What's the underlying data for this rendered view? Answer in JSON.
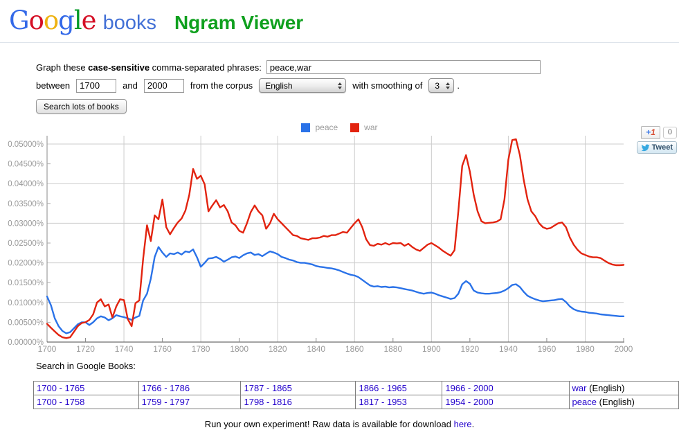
{
  "header": {
    "logo_letters": [
      {
        "ch": "G",
        "color": "#3369e8"
      },
      {
        "ch": "o",
        "color": "#d50f25"
      },
      {
        "ch": "o",
        "color": "#eeb211"
      },
      {
        "ch": "g",
        "color": "#3369e8"
      },
      {
        "ch": "l",
        "color": "#009925"
      },
      {
        "ch": "e",
        "color": "#d50f25"
      }
    ],
    "books": "books",
    "app_title": "Ngram Viewer"
  },
  "form": {
    "label_prefix": "Graph these ",
    "label_bold": "case-sensitive",
    "label_suffix": " comma-separated phrases:",
    "phrases_value": "peace,war",
    "between_label": "between",
    "year_start": "1700",
    "and_label": "and",
    "year_end": "2000",
    "corpus_label": "from the corpus",
    "corpus_value": "English",
    "smoothing_label": "with smoothing of",
    "smoothing_value": "3",
    "period": ".",
    "search_button": "Search lots of books"
  },
  "social": {
    "plusone_plus": "+",
    "plusone_one": "1",
    "plusone_count": "0",
    "tweet_label": "Tweet",
    "icons": {
      "plusone": "google-plus-one-icon",
      "tweet": "twitter-bird-icon"
    },
    "tweet_blue": "#36a8e0"
  },
  "chart_data": {
    "type": "line",
    "title": "",
    "xlabel": "",
    "ylabel": "",
    "xlim": [
      1700,
      2000
    ],
    "ylim": [
      0,
      0.052
    ],
    "grid": {
      "h_step": 0.01,
      "v_step_years": 40,
      "color": "#cccccc"
    },
    "legend_position": "top-center",
    "x_ticks": [
      1700,
      1720,
      1740,
      1760,
      1780,
      1800,
      1820,
      1840,
      1860,
      1880,
      1900,
      1920,
      1940,
      1960,
      1980,
      2000
    ],
    "y_tick_labels": [
      "0.00000%",
      "0.00500%",
      "0.01000%",
      "0.01500%",
      "0.02000%",
      "0.02500%",
      "0.03000%",
      "0.03500%",
      "0.04000%",
      "0.04500%",
      "0.05000%"
    ],
    "y_tick_values": [
      0,
      0.005,
      0.01,
      0.015,
      0.02,
      0.025,
      0.03,
      0.035,
      0.04,
      0.045,
      0.05
    ],
    "x_start": 1700,
    "x_step": 2,
    "series": [
      {
        "name": "peace",
        "color": "#2a72e8",
        "values": [
          0.0115,
          0.0093,
          0.006,
          0.004,
          0.0028,
          0.0022,
          0.0025,
          0.0035,
          0.0045,
          0.005,
          0.005,
          0.0043,
          0.005,
          0.006,
          0.0065,
          0.0062,
          0.0055,
          0.006,
          0.0068,
          0.0065,
          0.0063,
          0.006,
          0.0056,
          0.0062,
          0.0066,
          0.0105,
          0.0122,
          0.016,
          0.0215,
          0.024,
          0.0226,
          0.0215,
          0.0224,
          0.0222,
          0.0226,
          0.0221,
          0.0229,
          0.0227,
          0.0234,
          0.0214,
          0.019,
          0.02,
          0.0211,
          0.0212,
          0.0215,
          0.021,
          0.0203,
          0.0208,
          0.0214,
          0.0216,
          0.0212,
          0.0219,
          0.0224,
          0.0226,
          0.022,
          0.0222,
          0.0217,
          0.0223,
          0.0229,
          0.0226,
          0.0222,
          0.0215,
          0.0212,
          0.0208,
          0.0206,
          0.0202,
          0.02,
          0.02,
          0.0198,
          0.0196,
          0.0192,
          0.019,
          0.0189,
          0.0187,
          0.0186,
          0.0184,
          0.0181,
          0.0177,
          0.0173,
          0.017,
          0.0168,
          0.0164,
          0.0157,
          0.015,
          0.0143,
          0.014,
          0.0141,
          0.0139,
          0.014,
          0.0138,
          0.0139,
          0.0138,
          0.0136,
          0.0134,
          0.0132,
          0.013,
          0.0127,
          0.0124,
          0.0122,
          0.0124,
          0.0125,
          0.0122,
          0.0118,
          0.0115,
          0.0112,
          0.0109,
          0.0111,
          0.0122,
          0.0146,
          0.0154,
          0.0147,
          0.013,
          0.0125,
          0.0123,
          0.0122,
          0.0122,
          0.0123,
          0.0124,
          0.0126,
          0.013,
          0.0136,
          0.0144,
          0.0146,
          0.0139,
          0.0127,
          0.0117,
          0.0112,
          0.0108,
          0.0105,
          0.0103,
          0.0104,
          0.0105,
          0.0106,
          0.0108,
          0.0109,
          0.0101,
          0.009,
          0.0083,
          0.0079,
          0.0077,
          0.0076,
          0.0074,
          0.0073,
          0.0072,
          0.007,
          0.0069,
          0.0068,
          0.0067,
          0.0066,
          0.0065,
          0.0065
        ]
      },
      {
        "name": "war",
        "color": "#e2230f",
        "values": [
          0.0046,
          0.0036,
          0.0027,
          0.0018,
          0.0012,
          0.001,
          0.0012,
          0.0026,
          0.004,
          0.0048,
          0.005,
          0.0056,
          0.007,
          0.01,
          0.0108,
          0.009,
          0.0095,
          0.0062,
          0.009,
          0.0108,
          0.0106,
          0.0058,
          0.004,
          0.0098,
          0.0105,
          0.021,
          0.0295,
          0.0255,
          0.032,
          0.031,
          0.036,
          0.029,
          0.0272,
          0.0288,
          0.0302,
          0.0312,
          0.0332,
          0.0372,
          0.0437,
          0.0412,
          0.042,
          0.0398,
          0.033,
          0.0345,
          0.0358,
          0.034,
          0.0346,
          0.033,
          0.0302,
          0.0295,
          0.0281,
          0.0276,
          0.03,
          0.0328,
          0.0345,
          0.033,
          0.032,
          0.0286,
          0.03,
          0.0324,
          0.031,
          0.03,
          0.029,
          0.028,
          0.027,
          0.0268,
          0.0262,
          0.026,
          0.0258,
          0.0262,
          0.0262,
          0.0264,
          0.0268,
          0.0266,
          0.027,
          0.027,
          0.0274,
          0.0278,
          0.0276,
          0.0288,
          0.03,
          0.031,
          0.029,
          0.026,
          0.0245,
          0.0243,
          0.0248,
          0.0246,
          0.025,
          0.0246,
          0.025,
          0.0249,
          0.025,
          0.0243,
          0.0248,
          0.024,
          0.0234,
          0.023,
          0.0238,
          0.0246,
          0.025,
          0.0244,
          0.0238,
          0.023,
          0.0224,
          0.0218,
          0.0232,
          0.033,
          0.0445,
          0.0472,
          0.043,
          0.0372,
          0.033,
          0.0305,
          0.03,
          0.0301,
          0.0302,
          0.0304,
          0.031,
          0.036,
          0.046,
          0.051,
          0.0512,
          0.0472,
          0.041,
          0.036,
          0.033,
          0.0318,
          0.03,
          0.029,
          0.0286,
          0.0288,
          0.0294,
          0.03,
          0.0302,
          0.029,
          0.0264,
          0.0246,
          0.0233,
          0.0224,
          0.022,
          0.0216,
          0.0214,
          0.0214,
          0.0212,
          0.0206,
          0.02,
          0.0196,
          0.0194,
          0.0194,
          0.0195
        ]
      }
    ]
  },
  "search_table": {
    "label": "Search in Google Books:",
    "corpus_suffix": " (English)",
    "rows": [
      {
        "ranges": [
          "1700 - 1765",
          "1766 - 1786",
          "1787 - 1865",
          "1866 - 1965",
          "1966 - 2000"
        ],
        "term": "war"
      },
      {
        "ranges": [
          "1700 - 1758",
          "1759 - 1797",
          "1798 - 1816",
          "1817 - 1953",
          "1954 - 2000"
        ],
        "term": "peace"
      }
    ]
  },
  "footer": {
    "text_before": "Run your own experiment! Raw data is available for download ",
    "link_label": "here",
    "text_after": "."
  }
}
